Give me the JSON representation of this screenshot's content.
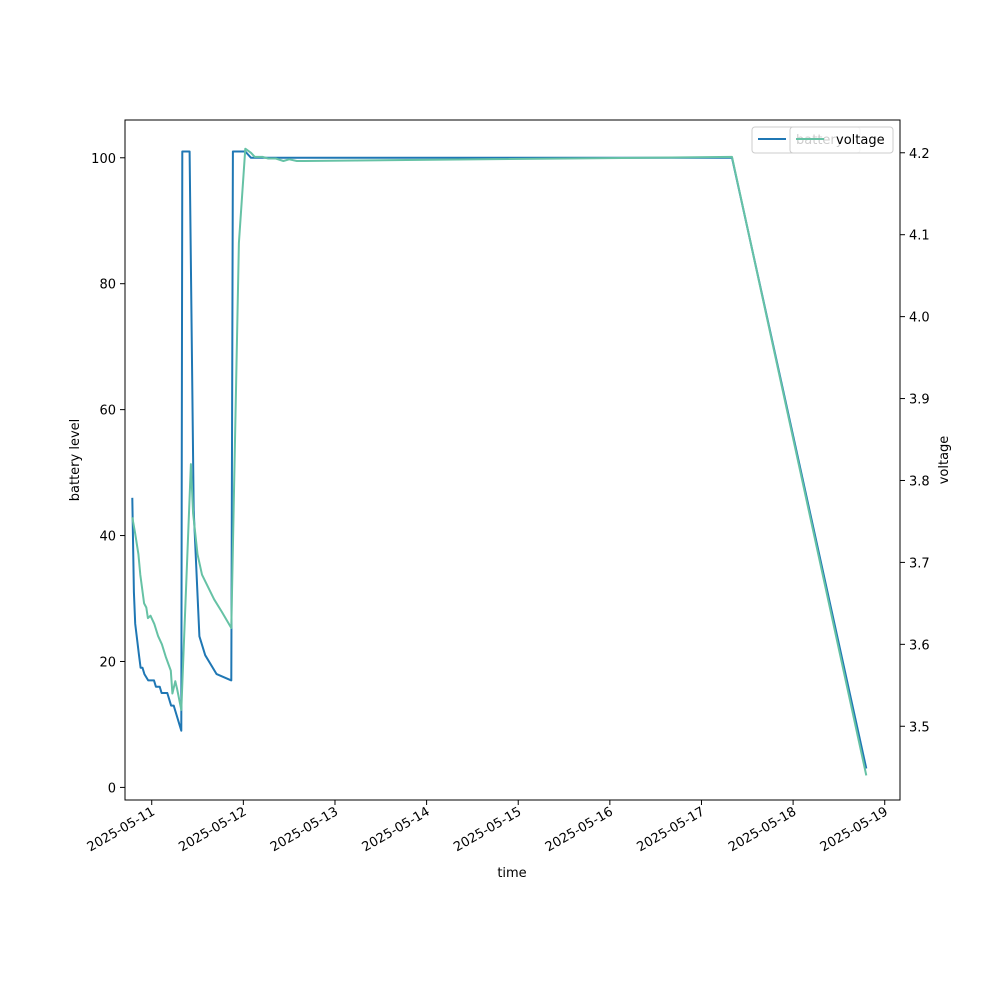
{
  "chart_data": {
    "type": "line",
    "title": "",
    "xlabel": "time",
    "ylabel": "battery level",
    "y2label": "voltage",
    "xlim": [
      "2025-05-10T17:00",
      "2025-05-19T04:00"
    ],
    "ylim": [
      -2,
      106
    ],
    "y2lim": [
      3.41,
      4.24
    ],
    "xticks": [
      "2025-05-11",
      "2025-05-12",
      "2025-05-13",
      "2025-05-14",
      "2025-05-15",
      "2025-05-16",
      "2025-05-17",
      "2025-05-18",
      "2025-05-19"
    ],
    "yticks": [
      0,
      20,
      40,
      60,
      80,
      100
    ],
    "y2ticks": [
      "3.5",
      "3.6",
      "3.7",
      "3.8",
      "3.9",
      "4.0",
      "4.1",
      "4.2"
    ],
    "grid": false,
    "legend": [
      {
        "name": "battery",
        "placement": "top-right",
        "color": "#1f77b4"
      },
      {
        "name": "voltage",
        "placement": "top-right",
        "color": "#66c2a5"
      }
    ],
    "series": [
      {
        "name": "battery",
        "axis": "left",
        "color": "#1f77b4",
        "points": [
          [
            "2025-05-10T18:55",
            46
          ],
          [
            "2025-05-10T19:20",
            31
          ],
          [
            "2025-05-10T19:40",
            26
          ],
          [
            "2025-05-10T20:40",
            21
          ],
          [
            "2025-05-10T21:05",
            19
          ],
          [
            "2025-05-10T21:35",
            19
          ],
          [
            "2025-05-10T22:05",
            18
          ],
          [
            "2025-05-10T23:05",
            17
          ],
          [
            "2025-05-11T00:35",
            17
          ],
          [
            "2025-05-11T01:05",
            16
          ],
          [
            "2025-05-11T02:05",
            16
          ],
          [
            "2025-05-11T02:35",
            15
          ],
          [
            "2025-05-11T04:05",
            15
          ],
          [
            "2025-05-11T05:05",
            13
          ],
          [
            "2025-05-11T05:45",
            13
          ],
          [
            "2025-05-11T07:45",
            9
          ],
          [
            "2025-05-11T08:00",
            101
          ],
          [
            "2025-05-11T09:55",
            101
          ],
          [
            "2025-05-11T11:00",
            44
          ],
          [
            "2025-05-11T12:30",
            24
          ],
          [
            "2025-05-11T14:00",
            21
          ],
          [
            "2025-05-11T17:00",
            18
          ],
          [
            "2025-05-11T20:50",
            17
          ],
          [
            "2025-05-11T21:15",
            101
          ],
          [
            "2025-05-12T00:30",
            101
          ],
          [
            "2025-05-12T02:00",
            100
          ],
          [
            "2025-05-17T08:00",
            100
          ],
          [
            "2025-05-18T19:10",
            3
          ]
        ]
      },
      {
        "name": "voltage",
        "axis": "right",
        "color": "#66c2a5",
        "points": [
          [
            "2025-05-10T18:55",
            3.755
          ],
          [
            "2025-05-10T19:40",
            3.735
          ],
          [
            "2025-05-10T20:30",
            3.71
          ],
          [
            "2025-05-10T21:00",
            3.685
          ],
          [
            "2025-05-10T22:00",
            3.65
          ],
          [
            "2025-05-10T22:35",
            3.645
          ],
          [
            "2025-05-10T23:00",
            3.632
          ],
          [
            "2025-05-10T23:40",
            3.635
          ],
          [
            "2025-05-11T00:40",
            3.625
          ],
          [
            "2025-05-11T01:40",
            3.61
          ],
          [
            "2025-05-11T02:40",
            3.6
          ],
          [
            "2025-05-11T03:40",
            3.585
          ],
          [
            "2025-05-11T05:00",
            3.568
          ],
          [
            "2025-05-11T05:25",
            3.54
          ],
          [
            "2025-05-11T06:10",
            3.555
          ],
          [
            "2025-05-11T06:40",
            3.545
          ],
          [
            "2025-05-11T07:45",
            3.52
          ],
          [
            "2025-05-11T10:15",
            3.82
          ],
          [
            "2025-05-11T10:50",
            3.76
          ],
          [
            "2025-05-11T12:00",
            3.71
          ],
          [
            "2025-05-11T13:10",
            3.685
          ],
          [
            "2025-05-11T16:20",
            3.655
          ],
          [
            "2025-05-11T18:20",
            3.64
          ],
          [
            "2025-05-11T20:50",
            3.62
          ],
          [
            "2025-05-11T22:50",
            4.09
          ],
          [
            "2025-05-12T00:30",
            4.205
          ],
          [
            "2025-05-12T02:00",
            4.2
          ],
          [
            "2025-05-12T03:00",
            4.195
          ],
          [
            "2025-05-12T05:00",
            4.195
          ],
          [
            "2025-05-12T06:30",
            4.193
          ],
          [
            "2025-05-12T08:30",
            4.193
          ],
          [
            "2025-05-12T10:30",
            4.19
          ],
          [
            "2025-05-12T12:00",
            4.192
          ],
          [
            "2025-05-12T14:00",
            4.19
          ],
          [
            "2025-05-12T16:00",
            4.19
          ],
          [
            "2025-05-17T08:00",
            4.195
          ],
          [
            "2025-05-18T19:10",
            3.44
          ]
        ]
      }
    ]
  }
}
